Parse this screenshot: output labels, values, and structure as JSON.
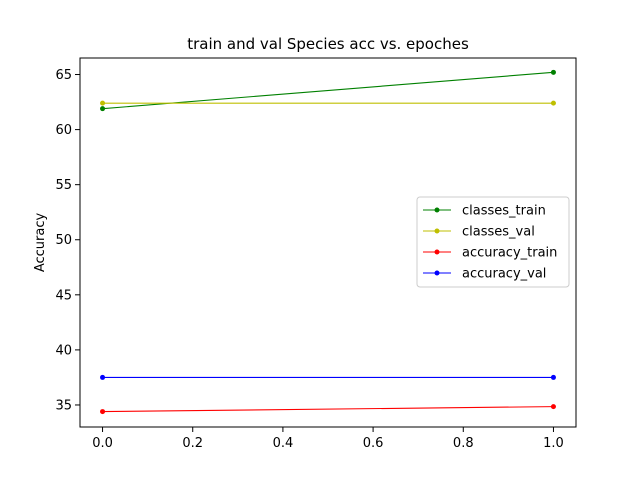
{
  "chart_data": {
    "type": "line",
    "title": "train and val Species acc vs. epoches",
    "xlabel": "",
    "ylabel": "Accuracy",
    "x": [
      0,
      1
    ],
    "xlim": [
      -0.05,
      1.05
    ],
    "ylim": [
      33.0,
      66.5
    ],
    "xticks": [
      0.0,
      0.2,
      0.4,
      0.6,
      0.8,
      1.0
    ],
    "xtick_labels": [
      "0.0",
      "0.2",
      "0.4",
      "0.6",
      "0.8",
      "1.0"
    ],
    "yticks": [
      35,
      40,
      45,
      50,
      55,
      60,
      65
    ],
    "ytick_labels": [
      "35",
      "40",
      "45",
      "50",
      "55",
      "60",
      "65"
    ],
    "grid": false,
    "legend_position": "center-right",
    "series": [
      {
        "name": "classes_train",
        "color": "#008000",
        "values": [
          61.9,
          65.2
        ]
      },
      {
        "name": "classes_val",
        "color": "#bfbf00",
        "values": [
          62.4,
          62.4
        ]
      },
      {
        "name": "accuracy_train",
        "color": "#ff0000",
        "values": [
          34.4,
          34.85
        ]
      },
      {
        "name": "accuracy_val",
        "color": "#0000ff",
        "values": [
          37.5,
          37.5
        ]
      }
    ]
  }
}
